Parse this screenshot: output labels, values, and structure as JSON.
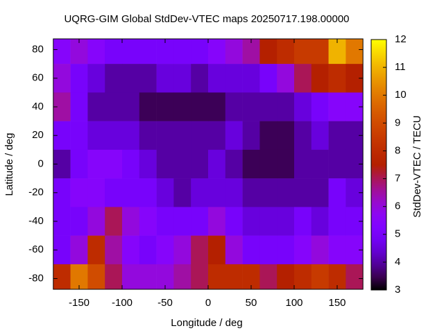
{
  "chart_data": {
    "type": "heatmap",
    "title": "UQRG-GIM Global StdDev-VTEC maps 20250717.198.00000",
    "x_label": "Longitude / deg",
    "y_label": "Latitude / deg",
    "colorbar_label": "StdDev-VTEC / TECU",
    "palette": "gnuplot",
    "x_bins": [
      -180,
      -160,
      -140,
      -120,
      -100,
      -80,
      -60,
      -40,
      -20,
      0,
      20,
      40,
      60,
      80,
      100,
      120,
      140,
      160,
      180
    ],
    "y_bins": [
      87.5,
      70,
      50,
      30,
      10,
      -10,
      -30,
      -50,
      -70,
      -87.5
    ],
    "z": [
      [
        5.5,
        6,
        5.5,
        5,
        5,
        5,
        5,
        5,
        5,
        5.5,
        6,
        6.5,
        7.5,
        8,
        8.5,
        8.5,
        11,
        10
      ],
      [
        6,
        5,
        4.5,
        4,
        4,
        4,
        4.5,
        4.5,
        4,
        4.5,
        4.5,
        4.5,
        5,
        6,
        7,
        7.5,
        8,
        7.5
      ],
      [
        6.5,
        5,
        4,
        4,
        4,
        3.5,
        3.5,
        3.5,
        3.5,
        3.5,
        4,
        4,
        4,
        4,
        4.5,
        5,
        5.5,
        5.5
      ],
      [
        5,
        5,
        4.5,
        4.5,
        4.5,
        4,
        4,
        4,
        4,
        4,
        4.5,
        4,
        3.5,
        3.5,
        4,
        4.5,
        4,
        4
      ],
      [
        4,
        5,
        5.5,
        5.5,
        5,
        4.5,
        4,
        4,
        4,
        4.5,
        4,
        3.5,
        3.5,
        3.5,
        4,
        4,
        4,
        4
      ],
      [
        5,
        5.5,
        5.5,
        5,
        5,
        5,
        4.5,
        4,
        4.5,
        4.5,
        4.5,
        4,
        4,
        4,
        4,
        4,
        5,
        4.5
      ],
      [
        5,
        5,
        6,
        7,
        6,
        5.5,
        5,
        5,
        5,
        6,
        5,
        4.5,
        4.5,
        4.5,
        5,
        4.5,
        5,
        5
      ],
      [
        5,
        6,
        8,
        6.5,
        5.5,
        5,
        5.5,
        6,
        7,
        7.5,
        6,
        5,
        5,
        5,
        5.5,
        6,
        5.5,
        5.5
      ],
      [
        8,
        10,
        9,
        7,
        6,
        6,
        6,
        6.5,
        7,
        8,
        8,
        8,
        7,
        7.5,
        8,
        8.5,
        8,
        7
      ]
    ],
    "xlim": [
      -180,
      180
    ],
    "ylim": [
      -87.5,
      87.5
    ],
    "xticks": [
      -150,
      -100,
      -50,
      0,
      50,
      100,
      150
    ],
    "yticks": [
      -80,
      -60,
      -40,
      -20,
      0,
      20,
      40,
      60,
      80
    ],
    "zlim": [
      3,
      12
    ],
    "zticks": [
      3,
      4,
      5,
      6,
      7,
      8,
      9,
      10,
      11,
      12
    ]
  }
}
